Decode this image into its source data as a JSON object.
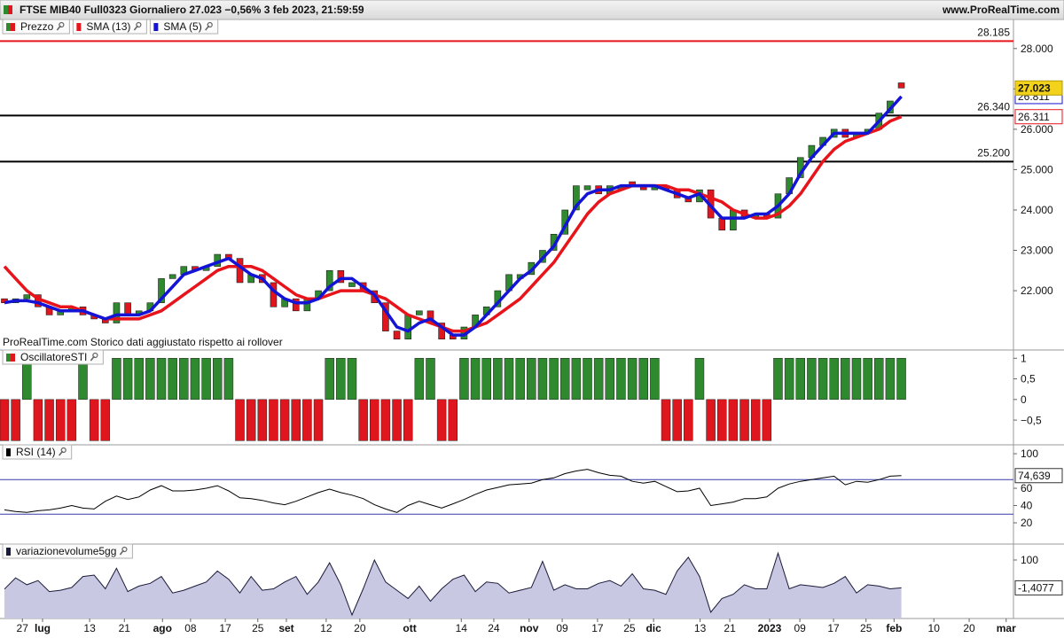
{
  "header": {
    "title": "FTSE MIB40 Full0323 Giornaliero 27.023 −0,56% 3 feb 2023, 21:59:59",
    "site": "www.ProRealTime.com"
  },
  "chart_data": [
    {
      "type": "candlestick",
      "name": "Prezzo",
      "up_color": "#2f8a2f",
      "down_color": "#e0161e",
      "annotation": "ProRealTime.com Storico dati aggiustato rispetto ai rollover",
      "x": [
        0,
        2,
        4,
        6,
        8,
        10,
        12,
        14,
        16,
        18,
        20,
        22,
        24,
        26,
        28,
        30,
        32,
        34,
        36,
        38,
        40,
        42,
        44,
        46,
        48,
        50,
        52,
        54,
        56,
        58,
        60,
        62,
        64,
        66,
        68,
        70,
        72,
        74,
        76,
        78,
        80,
        82,
        84,
        86,
        88,
        90,
        92,
        94,
        96,
        98,
        100,
        102,
        104,
        106,
        108,
        110,
        112,
        114,
        116,
        118,
        120,
        122,
        124,
        126,
        128,
        130,
        132,
        134,
        136,
        138,
        140,
        142,
        144,
        146,
        148,
        150,
        152,
        154,
        156,
        158,
        160
      ],
      "open": [
        21.8,
        21.7,
        21.8,
        21.9,
        21.6,
        21.4,
        21.5,
        21.6,
        21.4,
        21.3,
        21.2,
        21.7,
        21.4,
        21.5,
        21.7,
        22.3,
        22.4,
        22.6,
        22.5,
        22.6,
        22.9,
        22.8,
        22.2,
        22.4,
        22.2,
        21.6,
        21.8,
        21.5,
        21.8,
        22.0,
        22.5,
        22.1,
        22.2,
        22.0,
        21.7,
        21.0,
        20.8,
        21.4,
        21.5,
        21.2,
        20.9,
        20.8,
        21.1,
        21.4,
        21.6,
        22.0,
        22.3,
        22.4,
        22.7,
        23.0,
        23.4,
        24.0,
        24.5,
        24.6,
        24.4,
        24.5,
        24.7,
        24.6,
        24.5,
        24.6,
        24.5,
        24.3,
        24.2,
        24.5,
        23.8,
        23.5,
        24.0,
        23.8,
        23.9,
        23.8,
        24.4,
        24.8,
        25.3,
        25.6,
        25.8,
        26.0,
        25.8,
        25.9,
        26.0,
        26.4,
        27.15
      ],
      "close": [
        21.7,
        21.8,
        21.9,
        21.6,
        21.4,
        21.5,
        21.6,
        21.4,
        21.3,
        21.2,
        21.7,
        21.4,
        21.5,
        21.7,
        22.3,
        22.4,
        22.6,
        22.5,
        22.6,
        22.9,
        22.8,
        22.2,
        22.4,
        22.2,
        21.6,
        21.8,
        21.5,
        21.8,
        22.0,
        22.5,
        22.2,
        22.2,
        22.0,
        21.7,
        21.0,
        20.8,
        21.4,
        21.5,
        21.2,
        20.8,
        20.8,
        21.1,
        21.4,
        21.6,
        22.0,
        22.4,
        22.4,
        22.7,
        23.0,
        23.4,
        24.0,
        24.6,
        24.6,
        24.4,
        24.6,
        24.6,
        24.6,
        24.5,
        24.6,
        24.5,
        24.3,
        24.2,
        24.5,
        23.8,
        23.5,
        24.0,
        23.8,
        23.9,
        23.8,
        24.4,
        24.8,
        25.3,
        25.6,
        25.8,
        26.0,
        25.8,
        25.9,
        26.0,
        26.4,
        26.7,
        27.023
      ],
      "series": [
        {
          "name": "SMA (13)",
          "color": "#e8141b",
          "values": [
            22.6,
            22.3,
            22.0,
            21.8,
            21.7,
            21.6,
            21.6,
            21.5,
            21.4,
            21.3,
            21.3,
            21.3,
            21.3,
            21.4,
            21.5,
            21.7,
            21.9,
            22.1,
            22.3,
            22.5,
            22.6,
            22.6,
            22.6,
            22.5,
            22.3,
            22.1,
            21.9,
            21.8,
            21.8,
            21.9,
            22.0,
            22.0,
            22.0,
            21.9,
            21.8,
            21.6,
            21.4,
            21.3,
            21.2,
            21.1,
            21.0,
            21.0,
            21.1,
            21.2,
            21.4,
            21.6,
            21.8,
            22.1,
            22.4,
            22.7,
            23.1,
            23.5,
            23.9,
            24.2,
            24.4,
            24.5,
            24.6,
            24.6,
            24.6,
            24.6,
            24.5,
            24.5,
            24.4,
            24.3,
            24.2,
            24.0,
            23.9,
            23.8,
            23.8,
            23.9,
            24.1,
            24.4,
            24.8,
            25.2,
            25.5,
            25.7,
            25.8,
            25.9,
            26.0,
            26.2,
            26.311
          ]
        },
        {
          "name": "SMA (5)",
          "color": "#1414d6",
          "values": [
            21.7,
            21.75,
            21.75,
            21.7,
            21.6,
            21.5,
            21.5,
            21.5,
            21.4,
            21.3,
            21.4,
            21.4,
            21.4,
            21.5,
            21.8,
            22.1,
            22.4,
            22.5,
            22.6,
            22.7,
            22.8,
            22.6,
            22.4,
            22.3,
            22.0,
            21.8,
            21.7,
            21.7,
            21.8,
            22.1,
            22.3,
            22.3,
            22.1,
            21.9,
            21.5,
            21.1,
            21.0,
            21.2,
            21.3,
            21.1,
            20.9,
            20.9,
            21.1,
            21.4,
            21.7,
            22.0,
            22.3,
            22.5,
            22.8,
            23.1,
            23.6,
            24.1,
            24.4,
            24.5,
            24.5,
            24.6,
            24.6,
            24.6,
            24.6,
            24.5,
            24.4,
            24.3,
            24.4,
            24.1,
            23.8,
            23.8,
            23.8,
            23.9,
            23.9,
            24.1,
            24.4,
            24.9,
            25.3,
            25.6,
            25.9,
            25.9,
            25.9,
            25.9,
            26.2,
            26.5,
            26.811
          ]
        }
      ],
      "levels": [
        {
          "value": 28.185,
          "color": "#e8141b"
        },
        {
          "value": 26.34,
          "label": "26.340",
          "color": "#000000"
        },
        {
          "value": 25.2,
          "label": "25.200",
          "color": "#000000"
        }
      ],
      "last_color": "#f2d21b",
      "xlim": [
        0,
        180
      ],
      "xticks": [
        {
          "value": 3.2,
          "label": "27"
        },
        {
          "value": 6.8,
          "label": "lug",
          "major": true
        },
        {
          "value": 15.2,
          "label": "13"
        },
        {
          "value": 21.4,
          "label": "21"
        },
        {
          "value": 28.2,
          "label": "ago",
          "major": true
        },
        {
          "value": 33.2,
          "label": "08"
        },
        {
          "value": 39.4,
          "label": "17"
        },
        {
          "value": 45.2,
          "label": "25"
        },
        {
          "value": 50.3,
          "label": "set",
          "major": true
        },
        {
          "value": 57.4,
          "label": "12"
        },
        {
          "value": 63.4,
          "label": "20"
        },
        {
          "value": 72.3,
          "label": "ott",
          "major": true
        },
        {
          "value": 81.5,
          "label": "14"
        },
        {
          "value": 87.3,
          "label": "24"
        },
        {
          "value": 93.6,
          "label": "nov",
          "major": true
        },
        {
          "value": 99.5,
          "label": "09"
        },
        {
          "value": 105.8,
          "label": "17"
        },
        {
          "value": 111.5,
          "label": "25"
        },
        {
          "value": 115.8,
          "label": "dic",
          "major": true
        },
        {
          "value": 124.1,
          "label": "13"
        },
        {
          "value": 129.4,
          "label": "21"
        },
        {
          "value": 136.5,
          "label": "2023",
          "major": true
        },
        {
          "value": 141.9,
          "label": "09"
        },
        {
          "value": 147.9,
          "label": "17"
        },
        {
          "value": 153.7,
          "label": "25"
        },
        {
          "value": 158.7,
          "label": "feb",
          "major": true
        },
        {
          "value": 165.8,
          "label": "10"
        },
        {
          "value": 172.1,
          "label": "20"
        },
        {
          "value": 178.7,
          "label": "mar",
          "major": true
        }
      ],
      "ylim": [
        20.53,
        28.72
      ],
      "yticks": [
        {
          "value": 28,
          "label": "28.000"
        },
        {
          "value": 27,
          "label": "27.000"
        },
        {
          "value": 26,
          "label": "26.000"
        },
        {
          "value": 25,
          "label": "25.000"
        },
        {
          "value": 24,
          "label": "24.000"
        },
        {
          "value": 23,
          "label": "23.000"
        },
        {
          "value": 22,
          "label": "22.000"
        }
      ]
    },
    {
      "type": "bar",
      "name": "OscillatoreSTI",
      "up_color": "#2f8a2f",
      "down_color": "#e0161e",
      "values": [
        -1,
        -1,
        1,
        -1,
        -1,
        -1,
        -1,
        1,
        -1,
        -1,
        1,
        1,
        1,
        1,
        1,
        1,
        1,
        1,
        1,
        1,
        1,
        -1,
        -1,
        -1,
        -1,
        -1,
        -1,
        -1,
        -1,
        1,
        1,
        1,
        -1,
        -1,
        -1,
        -1,
        -1,
        1,
        1,
        -1,
        -1,
        1,
        1,
        1,
        1,
        1,
        1,
        1,
        1,
        1,
        1,
        1,
        1,
        1,
        1,
        1,
        1,
        1,
        1,
        -1,
        -1,
        -1,
        1,
        -1,
        -1,
        -1,
        -1,
        -1,
        -1,
        1,
        1,
        1,
        1,
        1,
        1,
        1,
        1,
        1,
        1,
        1,
        1
      ],
      "ylim": [
        -1.1,
        1.2
      ],
      "yticks": [
        1,
        {
          "value": 0.5,
          "label": "0,5"
        },
        0,
        {
          "value": -0.5,
          "label": "−0,5"
        }
      ]
    },
    {
      "type": "line",
      "name": "RSI (14)",
      "color": "#000000",
      "level_color": "#3a3aa8",
      "levels": [
        70,
        30
      ],
      "values": [
        35,
        33,
        32,
        34,
        35,
        37,
        40,
        37,
        36,
        45,
        51,
        47,
        50,
        58,
        63,
        57,
        57,
        58,
        60,
        63,
        57,
        49,
        48,
        46,
        43,
        41,
        45,
        50,
        55,
        59,
        55,
        52,
        48,
        41,
        36,
        32,
        40,
        45,
        41,
        37,
        42,
        47,
        53,
        58,
        61,
        64,
        65,
        66,
        70,
        72,
        77,
        80,
        82,
        78,
        75,
        74,
        68,
        66,
        68,
        62,
        56,
        57,
        60,
        40,
        42,
        44,
        48,
        48,
        50,
        60,
        65,
        68,
        70,
        72,
        74,
        64,
        68,
        67,
        70,
        74,
        74.639
      ],
      "value_labels": [
        null,
        null,
        null,
        null,
        null,
        null,
        null,
        null,
        null,
        null,
        null,
        null,
        null,
        null,
        null,
        null,
        null,
        null,
        null,
        null,
        null,
        null,
        null,
        null,
        null,
        null,
        null,
        null,
        null,
        null,
        null,
        null,
        null,
        null,
        null,
        null,
        null,
        null,
        null,
        null,
        null,
        null,
        null,
        null,
        null,
        null,
        null,
        null,
        null,
        null,
        null,
        null,
        null,
        null,
        null,
        null,
        null,
        null,
        null,
        null,
        null,
        null,
        null,
        null,
        null,
        null,
        null,
        null,
        null,
        null,
        null,
        null,
        null,
        null,
        null,
        null,
        null,
        null,
        null,
        null,
        "74,639"
      ],
      "ylim": [
        -4.6,
        110.3
      ],
      "yticks": [
        100,
        60,
        40,
        20
      ]
    },
    {
      "type": "area",
      "name": "variazionevolume5gg",
      "color": "#1a1a3a",
      "fill": "#c8c8e2",
      "values": [
        -6,
        35,
        10,
        25,
        -15,
        -10,
        0,
        40,
        45,
        -5,
        70,
        -15,
        5,
        15,
        40,
        -20,
        -10,
        5,
        20,
        60,
        30,
        -20,
        40,
        -10,
        -5,
        20,
        40,
        -25,
        20,
        90,
        10,
        -100,
        -5,
        100,
        20,
        -10,
        -40,
        5,
        -50,
        -5,
        30,
        45,
        -15,
        20,
        15,
        -20,
        -10,
        0,
        95,
        -10,
        10,
        -5,
        -5,
        15,
        25,
        5,
        50,
        -5,
        -10,
        -25,
        60,
        110,
        40,
        -90,
        -40,
        -25,
        10,
        -5,
        -5,
        125,
        -5,
        10,
        5,
        0,
        15,
        40,
        -20,
        10,
        5,
        -5,
        -1.4077
      ],
      "value_labels": [
        null,
        null,
        null,
        null,
        null,
        null,
        null,
        null,
        null,
        null,
        null,
        null,
        null,
        null,
        null,
        null,
        null,
        null,
        null,
        null,
        null,
        null,
        null,
        null,
        null,
        null,
        null,
        null,
        null,
        null,
        null,
        null,
        null,
        null,
        null,
        null,
        null,
        null,
        null,
        null,
        null,
        null,
        null,
        null,
        null,
        null,
        null,
        null,
        null,
        null,
        null,
        null,
        null,
        null,
        null,
        null,
        null,
        null,
        null,
        null,
        null,
        null,
        null,
        null,
        null,
        null,
        null,
        null,
        null,
        null,
        null,
        null,
        null,
        null,
        null,
        null,
        null,
        null,
        null,
        null,
        "-1,4077"
      ],
      "ylim": [
        -113,
        158
      ],
      "yticks": [
        100
      ]
    }
  ]
}
